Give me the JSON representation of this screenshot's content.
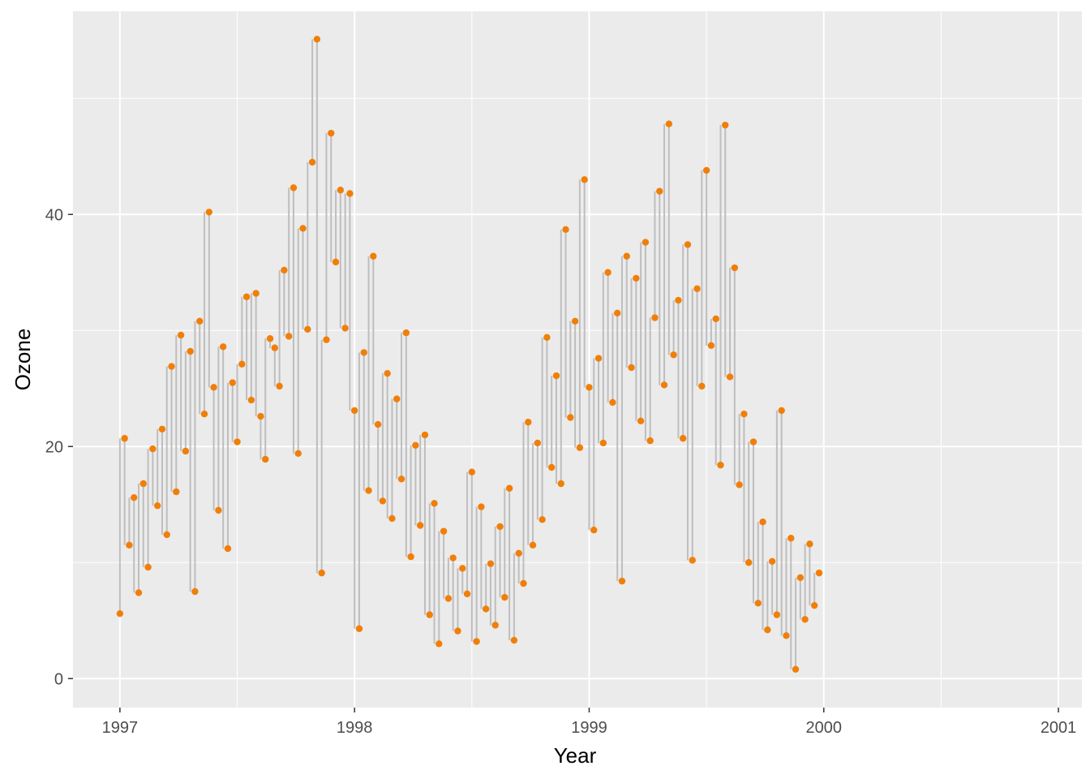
{
  "chart_data": {
    "type": "scatter",
    "title": "",
    "xlabel": "Year",
    "ylabel": "Ozone",
    "x_ticks": [
      "1997",
      "1998",
      "1999",
      "2000",
      "2001"
    ],
    "y_ticks": [
      "0",
      "20",
      "40"
    ],
    "xlim": [
      1996.8,
      2001.1
    ],
    "ylim": [
      -2.5,
      57.5
    ],
    "grid": true,
    "legend": "none",
    "colors": {
      "panel_background": "#EBEBEB",
      "grid_major": "#FFFFFF",
      "points": "#F07F09",
      "segments": "#BEBEBE"
    },
    "series": [
      {
        "style": "points with vertical segments linking consecutive observations",
        "points": [
          [
            1997.0,
            5.6
          ],
          [
            1997.02,
            20.7
          ],
          [
            1997.04,
            11.5
          ],
          [
            1997.06,
            15.6
          ],
          [
            1997.08,
            7.4
          ],
          [
            1997.1,
            16.8
          ],
          [
            1997.12,
            9.6
          ],
          [
            1997.14,
            19.8
          ],
          [
            1997.16,
            14.9
          ],
          [
            1997.18,
            21.5
          ],
          [
            1997.2,
            12.4
          ],
          [
            1997.22,
            26.9
          ],
          [
            1997.24,
            16.1
          ],
          [
            1997.26,
            29.6
          ],
          [
            1997.28,
            19.6
          ],
          [
            1997.3,
            28.2
          ],
          [
            1997.32,
            7.5
          ],
          [
            1997.34,
            30.8
          ],
          [
            1997.36,
            22.8
          ],
          [
            1997.38,
            40.2
          ],
          [
            1997.4,
            25.1
          ],
          [
            1997.42,
            14.5
          ],
          [
            1997.44,
            28.6
          ],
          [
            1997.46,
            11.2
          ],
          [
            1997.48,
            25.5
          ],
          [
            1997.5,
            20.4
          ],
          [
            1997.52,
            27.1
          ],
          [
            1997.54,
            32.9
          ],
          [
            1997.56,
            24.0
          ],
          [
            1997.58,
            33.2
          ],
          [
            1997.6,
            22.6
          ],
          [
            1997.62,
            18.9
          ],
          [
            1997.64,
            29.3
          ],
          [
            1997.66,
            28.5
          ],
          [
            1997.68,
            25.2
          ],
          [
            1997.7,
            35.2
          ],
          [
            1997.72,
            29.5
          ],
          [
            1997.74,
            42.3
          ],
          [
            1997.76,
            19.4
          ],
          [
            1997.78,
            38.8
          ],
          [
            1997.8,
            30.1
          ],
          [
            1997.82,
            44.5
          ],
          [
            1997.84,
            55.1
          ],
          [
            1997.86,
            9.1
          ],
          [
            1997.88,
            29.2
          ],
          [
            1997.9,
            47.0
          ],
          [
            1997.92,
            35.9
          ],
          [
            1997.94,
            42.1
          ],
          [
            1997.96,
            30.2
          ],
          [
            1997.98,
            41.8
          ],
          [
            1998.0,
            23.1
          ],
          [
            1998.02,
            4.3
          ],
          [
            1998.04,
            28.1
          ],
          [
            1998.06,
            16.2
          ],
          [
            1998.08,
            36.4
          ],
          [
            1998.1,
            21.9
          ],
          [
            1998.12,
            15.3
          ],
          [
            1998.14,
            26.3
          ],
          [
            1998.16,
            13.8
          ],
          [
            1998.18,
            24.1
          ],
          [
            1998.2,
            17.2
          ],
          [
            1998.22,
            29.8
          ],
          [
            1998.24,
            10.5
          ],
          [
            1998.26,
            20.1
          ],
          [
            1998.28,
            13.2
          ],
          [
            1998.3,
            21.0
          ],
          [
            1998.32,
            5.5
          ],
          [
            1998.34,
            15.1
          ],
          [
            1998.36,
            3.0
          ],
          [
            1998.38,
            12.7
          ],
          [
            1998.4,
            6.9
          ],
          [
            1998.42,
            10.4
          ],
          [
            1998.44,
            4.1
          ],
          [
            1998.46,
            9.5
          ],
          [
            1998.48,
            7.3
          ],
          [
            1998.5,
            17.8
          ],
          [
            1998.52,
            3.2
          ],
          [
            1998.54,
            14.8
          ],
          [
            1998.56,
            6.0
          ],
          [
            1998.58,
            9.9
          ],
          [
            1998.6,
            4.6
          ],
          [
            1998.62,
            13.1
          ],
          [
            1998.64,
            7.0
          ],
          [
            1998.66,
            16.4
          ],
          [
            1998.68,
            3.3
          ],
          [
            1998.7,
            10.8
          ],
          [
            1998.72,
            8.2
          ],
          [
            1998.74,
            22.1
          ],
          [
            1998.76,
            11.5
          ],
          [
            1998.78,
            20.3
          ],
          [
            1998.8,
            13.7
          ],
          [
            1998.82,
            29.4
          ],
          [
            1998.84,
            18.2
          ],
          [
            1998.86,
            26.1
          ],
          [
            1998.88,
            16.8
          ],
          [
            1998.9,
            38.7
          ],
          [
            1998.92,
            22.5
          ],
          [
            1998.94,
            30.8
          ],
          [
            1998.96,
            19.9
          ],
          [
            1998.98,
            43.0
          ],
          [
            1999.0,
            25.1
          ],
          [
            1999.02,
            12.8
          ],
          [
            1999.04,
            27.6
          ],
          [
            1999.06,
            20.3
          ],
          [
            1999.08,
            35.0
          ],
          [
            1999.1,
            23.8
          ],
          [
            1999.12,
            31.5
          ],
          [
            1999.14,
            8.4
          ],
          [
            1999.16,
            36.4
          ],
          [
            1999.18,
            26.8
          ],
          [
            1999.2,
            34.5
          ],
          [
            1999.22,
            22.2
          ],
          [
            1999.24,
            37.6
          ],
          [
            1999.26,
            20.5
          ],
          [
            1999.28,
            31.1
          ],
          [
            1999.3,
            42.0
          ],
          [
            1999.32,
            25.3
          ],
          [
            1999.34,
            47.8
          ],
          [
            1999.36,
            27.9
          ],
          [
            1999.38,
            32.6
          ],
          [
            1999.4,
            20.7
          ],
          [
            1999.42,
            37.4
          ],
          [
            1999.44,
            10.2
          ],
          [
            1999.46,
            33.6
          ],
          [
            1999.48,
            25.2
          ],
          [
            1999.5,
            43.8
          ],
          [
            1999.52,
            28.7
          ],
          [
            1999.54,
            31.0
          ],
          [
            1999.56,
            18.4
          ],
          [
            1999.58,
            47.7
          ],
          [
            1999.6,
            26.0
          ],
          [
            1999.62,
            35.4
          ],
          [
            1999.64,
            16.7
          ],
          [
            1999.66,
            22.8
          ],
          [
            1999.68,
            10.0
          ],
          [
            1999.7,
            20.4
          ],
          [
            1999.72,
            6.5
          ],
          [
            1999.74,
            13.5
          ],
          [
            1999.76,
            4.2
          ],
          [
            1999.78,
            10.1
          ],
          [
            1999.8,
            5.5
          ],
          [
            1999.82,
            23.1
          ],
          [
            1999.84,
            3.7
          ],
          [
            1999.86,
            12.1
          ],
          [
            1999.88,
            0.8
          ],
          [
            1999.9,
            8.7
          ],
          [
            1999.92,
            5.1
          ],
          [
            1999.94,
            11.6
          ],
          [
            1999.96,
            6.3
          ],
          [
            1999.98,
            9.1
          ]
        ]
      }
    ]
  }
}
